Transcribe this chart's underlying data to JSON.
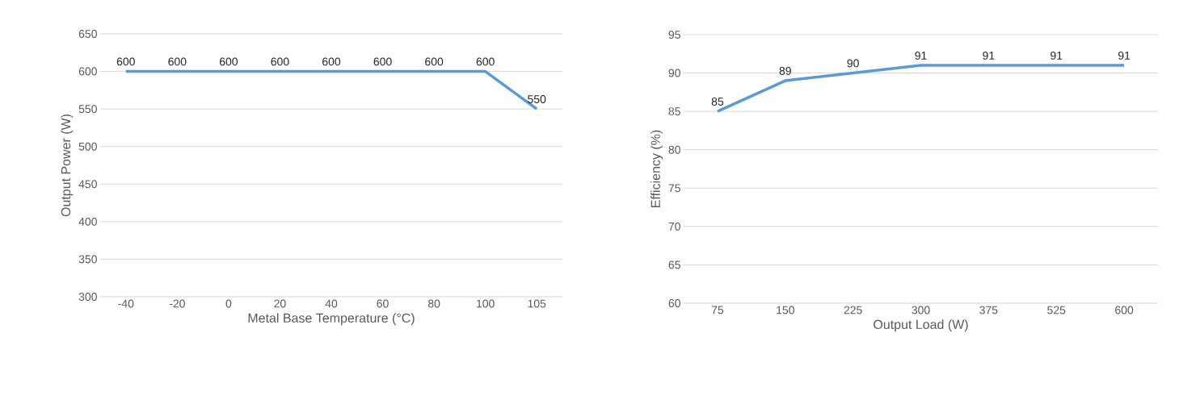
{
  "chart_data": [
    {
      "type": "line",
      "xlabel": "Metal Base Temperature (°C)",
      "ylabel": "Output Power (W)",
      "categories": [
        "-40",
        "-20",
        "0",
        "20",
        "40",
        "60",
        "80",
        "100",
        "105"
      ],
      "series": [
        {
          "color": "#5b9bd5",
          "values": [
            600,
            600,
            600,
            600,
            600,
            600,
            600,
            600,
            550
          ]
        }
      ],
      "ylim": [
        300,
        650
      ],
      "yticks": [
        300,
        350,
        400,
        450,
        500,
        550,
        600,
        650
      ],
      "grid": "y",
      "data_labels": true
    },
    {
      "type": "line",
      "xlabel": "Output Load (W)",
      "ylabel": "Efficiency (%)",
      "categories": [
        "75",
        "150",
        "225",
        "300",
        "375",
        "525",
        "600"
      ],
      "series": [
        {
          "color": "#5b9bd5",
          "values": [
            85,
            89,
            90,
            91,
            91,
            91,
            91
          ]
        }
      ],
      "ylim": [
        60,
        95
      ],
      "yticks": [
        60,
        65,
        70,
        75,
        80,
        85,
        90,
        95
      ],
      "grid": "y",
      "data_labels": true
    }
  ]
}
